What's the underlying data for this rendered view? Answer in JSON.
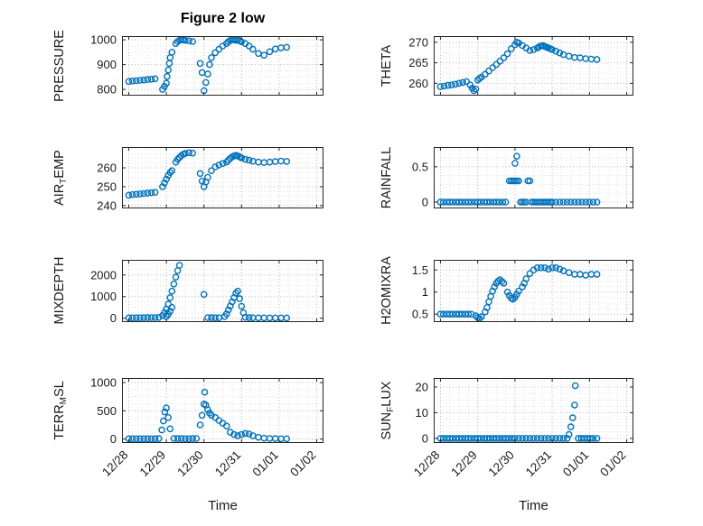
{
  "title": "Figure 2 low",
  "axis": {
    "xlabel": "Time",
    "xlim": [
      -0.18,
      5.18
    ],
    "xticks": [
      0,
      1,
      2,
      3,
      4,
      5
    ],
    "xtick_labels": [
      "12/28",
      "12/29",
      "12/30",
      "12/31",
      "01/01",
      "01/02"
    ]
  },
  "style": {
    "marker_color": "#0072BD",
    "axis_color": "#262626",
    "grid_major": "#b9b9b9",
    "grid_minor": "#dddddd"
  },
  "chart_data": [
    {
      "type": "scatter",
      "name": "pressure",
      "ylabel": {
        "pre": "PRESSURE",
        "sub": "",
        "post": ""
      },
      "ylabel_text": "PRESSURE",
      "ylim": [
        775,
        1015
      ],
      "yticks": [
        800,
        900,
        1000
      ],
      "ytick_labels": [
        "800",
        "900",
        "1000"
      ],
      "x": [
        0.0,
        0.1,
        0.2,
        0.3,
        0.4,
        0.5,
        0.6,
        0.7,
        0.9,
        0.95,
        1.0,
        1.02,
        1.05,
        1.08,
        1.1,
        1.15,
        1.25,
        1.3,
        1.35,
        1.4,
        1.45,
        1.5,
        1.6,
        1.7,
        1.9,
        1.95,
        2.0,
        2.05,
        2.1,
        2.15,
        2.2,
        2.3,
        2.4,
        2.5,
        2.6,
        2.65,
        2.7,
        2.75,
        2.8,
        2.85,
        2.9,
        2.95,
        3.0,
        3.1,
        3.2,
        3.3,
        3.45,
        3.6,
        3.75,
        3.9,
        4.05,
        4.2
      ],
      "y": [
        832,
        834,
        835,
        837,
        838,
        840,
        841,
        843,
        800,
        812,
        825,
        852,
        878,
        905,
        928,
        950,
        985,
        993,
        998,
        1000,
        1000,
        998,
        996,
        993,
        905,
        868,
        795,
        828,
        862,
        900,
        928,
        948,
        962,
        975,
        985,
        992,
        997,
        1000,
        1000,
        998,
        1000,
        996,
        992,
        985,
        975,
        962,
        945,
        938,
        952,
        963,
        968,
        970
      ]
    },
    {
      "type": "scatter",
      "name": "air-temp",
      "ylabel": {
        "pre": "AIR",
        "sub": "T",
        "post": "EMP"
      },
      "ylabel_text": "AIR_TEMP",
      "ylim": [
        238.5,
        271
      ],
      "yticks": [
        240,
        250,
        260
      ],
      "ytick_labels": [
        "240",
        "250",
        "260"
      ],
      "x": [
        0.0,
        0.1,
        0.2,
        0.3,
        0.4,
        0.5,
        0.6,
        0.7,
        0.9,
        0.95,
        1.0,
        1.05,
        1.1,
        1.15,
        1.25,
        1.3,
        1.35,
        1.4,
        1.45,
        1.5,
        1.6,
        1.7,
        1.9,
        1.95,
        2.0,
        2.05,
        2.1,
        2.2,
        2.3,
        2.4,
        2.5,
        2.6,
        2.65,
        2.7,
        2.75,
        2.8,
        2.85,
        2.9,
        2.95,
        3.0,
        3.1,
        3.2,
        3.3,
        3.45,
        3.6,
        3.75,
        3.9,
        4.05,
        4.2
      ],
      "y": [
        245.5,
        245.8,
        246.0,
        246.2,
        246.4,
        246.6,
        246.8,
        247.0,
        250,
        252,
        254,
        256,
        257.5,
        258.5,
        263,
        264.5,
        265.5,
        266.5,
        267.2,
        267.6,
        268,
        267.8,
        257,
        253,
        250,
        252.5,
        255,
        258.5,
        260.5,
        261.5,
        262.3,
        263,
        264,
        265,
        265.8,
        266.3,
        266.6,
        266.3,
        265.8,
        265.2,
        264.5,
        264,
        263.5,
        263,
        262.8,
        263,
        263.3,
        263.6,
        263.4
      ]
    },
    {
      "type": "scatter",
      "name": "mixdepth",
      "ylabel": {
        "pre": "MIXDEPTH",
        "sub": "",
        "post": ""
      },
      "ylabel_text": "MIXDEPTH",
      "ylim": [
        -180,
        2700
      ],
      "yticks": [
        0,
        1000,
        2000
      ],
      "ytick_labels": [
        "0",
        "1000",
        "2000"
      ],
      "x": [
        0.0,
        0.1,
        0.2,
        0.3,
        0.4,
        0.5,
        0.6,
        0.7,
        0.8,
        0.9,
        0.95,
        1.0,
        1.0,
        1.05,
        1.05,
        1.1,
        1.1,
        1.15,
        1.15,
        1.2,
        1.25,
        1.3,
        1.35,
        2.0,
        2.1,
        2.2,
        2.3,
        2.4,
        2.55,
        2.6,
        2.65,
        2.7,
        2.75,
        2.8,
        2.85,
        2.9,
        2.95,
        3.0,
        3.05,
        3.1,
        3.2,
        3.3,
        3.45,
        3.6,
        3.75,
        3.9,
        4.05,
        4.2
      ],
      "y": [
        15,
        15,
        20,
        20,
        25,
        25,
        30,
        30,
        35,
        120,
        260,
        80,
        420,
        650,
        180,
        950,
        320,
        1250,
        500,
        1580,
        1900,
        2200,
        2450,
        1100,
        30,
        25,
        20,
        20,
        80,
        200,
        380,
        560,
        760,
        950,
        1150,
        1250,
        900,
        550,
        250,
        40,
        25,
        20,
        15,
        15,
        10,
        10,
        10,
        10
      ]
    },
    {
      "type": "scatter",
      "name": "terr-msl",
      "ylabel": {
        "pre": "TERR",
        "sub": "M",
        "post": "SL"
      },
      "ylabel_text": "TERR_MSL",
      "ylim": [
        -70,
        1080
      ],
      "yticks": [
        0,
        500,
        1000
      ],
      "ytick_labels": [
        "0",
        "500",
        "1000"
      ],
      "x": [
        0.0,
        0.1,
        0.2,
        0.3,
        0.4,
        0.5,
        0.6,
        0.7,
        0.8,
        0.88,
        0.92,
        0.96,
        1.0,
        1.05,
        1.1,
        1.2,
        1.3,
        1.4,
        1.5,
        1.6,
        1.7,
        1.8,
        1.9,
        1.95,
        2.0,
        2.02,
        2.05,
        2.1,
        2.15,
        2.2,
        2.3,
        2.4,
        2.5,
        2.6,
        2.7,
        2.8,
        2.9,
        3.0,
        3.1,
        3.2,
        3.3,
        3.45,
        3.6,
        3.75,
        3.9,
        4.05,
        4.2
      ],
      "y": [
        5,
        5,
        5,
        5,
        5,
        5,
        5,
        5,
        8,
        160,
        320,
        480,
        550,
        380,
        180,
        10,
        8,
        8,
        5,
        5,
        8,
        10,
        250,
        420,
        620,
        830,
        600,
        520,
        460,
        420,
        380,
        330,
        280,
        230,
        120,
        80,
        60,
        80,
        100,
        90,
        60,
        30,
        15,
        10,
        8,
        5,
        5
      ]
    },
    {
      "type": "scatter",
      "name": "theta",
      "ylabel": {
        "pre": "THETA",
        "sub": "",
        "post": ""
      },
      "ylabel_text": "THETA",
      "ylim": [
        257,
        271.5
      ],
      "yticks": [
        260,
        265,
        270
      ],
      "ytick_labels": [
        "260",
        "265",
        "270"
      ],
      "x": [
        0.0,
        0.1,
        0.2,
        0.3,
        0.4,
        0.5,
        0.6,
        0.7,
        0.8,
        0.85,
        0.9,
        0.95,
        1.0,
        1.05,
        1.1,
        1.2,
        1.3,
        1.4,
        1.5,
        1.6,
        1.7,
        1.8,
        1.9,
        2.0,
        2.05,
        2.1,
        2.2,
        2.3,
        2.4,
        2.5,
        2.6,
        2.65,
        2.7,
        2.75,
        2.8,
        2.85,
        2.9,
        2.95,
        3.0,
        3.1,
        3.2,
        3.3,
        3.45,
        3.6,
        3.75,
        3.9,
        4.05,
        4.2
      ],
      "y": [
        259.2,
        259.3,
        259.5,
        259.6,
        259.8,
        260.0,
        260.2,
        260.4,
        259.6,
        258.8,
        258.2,
        258.6,
        260.8,
        261.2,
        261.5,
        262.2,
        263.0,
        263.8,
        264.6,
        265.4,
        266.2,
        267.2,
        268.4,
        269.4,
        270.0,
        269.8,
        269.2,
        268.6,
        268.0,
        268.2,
        268.6,
        268.9,
        269.1,
        269.2,
        269.0,
        268.8,
        268.6,
        268.4,
        268.2,
        267.8,
        267.4,
        267.0,
        266.6,
        266.3,
        266.2,
        266.0,
        265.9,
        265.8
      ]
    },
    {
      "type": "scatter",
      "name": "rainfall",
      "ylabel": {
        "pre": "RAINFALL",
        "sub": "",
        "post": ""
      },
      "ylabel_text": "RAINFALL",
      "ylim": [
        -0.09,
        0.78
      ],
      "yticks": [
        0,
        0.5
      ],
      "ytick_labels": [
        "0",
        "0.5"
      ],
      "x": [
        0,
        0.08,
        0.17,
        0.25,
        0.33,
        0.42,
        0.5,
        0.58,
        0.67,
        0.75,
        0.83,
        0.92,
        1.0,
        1.08,
        1.17,
        1.25,
        1.33,
        1.42,
        1.5,
        1.58,
        1.67,
        1.75,
        1.85,
        1.9,
        1.95,
        2.0,
        2.05,
        2.1,
        2.0,
        2.05,
        2.35,
        2.4,
        2.15,
        2.2,
        2.25,
        2.3,
        2.45,
        2.5,
        2.55,
        2.6,
        2.65,
        2.7,
        2.75,
        2.8,
        2.85,
        2.9,
        2.95,
        3.0,
        3.1,
        3.2,
        3.3,
        3.4,
        3.5,
        3.6,
        3.7,
        3.8,
        3.9,
        4.0,
        4.1,
        4.2
      ],
      "y": [
        0,
        0,
        0,
        0,
        0,
        0,
        0,
        0,
        0,
        0,
        0,
        0,
        0,
        0,
        0,
        0,
        0,
        0,
        0,
        0,
        0,
        0,
        0.3,
        0.3,
        0.3,
        0.3,
        0.3,
        0.3,
        0.55,
        0.65,
        0.3,
        0.3,
        0,
        0,
        0,
        0,
        0,
        0,
        0,
        0,
        0,
        0,
        0,
        0,
        0,
        0,
        0,
        0,
        0,
        0,
        0,
        0,
        0,
        0,
        0,
        0,
        0,
        0,
        0,
        0
      ]
    },
    {
      "type": "scatter",
      "name": "h2omixra",
      "ylabel": {
        "pre": "H2OMIXRA",
        "sub": "",
        "post": ""
      },
      "ylabel_text": "H2OMIXRA",
      "ylim": [
        0.32,
        1.73
      ],
      "yticks": [
        0.5,
        1,
        1.5
      ],
      "ytick_labels": [
        "0.5",
        "1",
        "1.5"
      ],
      "x": [
        0.0,
        0.08,
        0.17,
        0.25,
        0.33,
        0.42,
        0.5,
        0.58,
        0.67,
        0.75,
        0.83,
        0.95,
        1.0,
        1.05,
        1.1,
        1.2,
        1.25,
        1.3,
        1.35,
        1.4,
        1.45,
        1.5,
        1.55,
        1.6,
        1.65,
        1.7,
        1.8,
        1.85,
        1.9,
        1.95,
        2.0,
        2.05,
        2.1,
        2.2,
        2.25,
        2.3,
        2.4,
        2.5,
        2.6,
        2.7,
        2.8,
        2.9,
        3.0,
        3.1,
        3.2,
        3.3,
        3.45,
        3.6,
        3.75,
        3.9,
        4.05,
        4.2
      ],
      "y": [
        0.5,
        0.5,
        0.5,
        0.5,
        0.5,
        0.5,
        0.5,
        0.5,
        0.5,
        0.5,
        0.5,
        0.46,
        0.42,
        0.4,
        0.44,
        0.55,
        0.65,
        0.78,
        0.9,
        1.02,
        1.12,
        1.2,
        1.25,
        1.28,
        1.24,
        1.2,
        1.0,
        0.92,
        0.86,
        0.84,
        0.88,
        0.95,
        1.02,
        1.12,
        1.2,
        1.3,
        1.42,
        1.5,
        1.55,
        1.55,
        1.55,
        1.52,
        1.55,
        1.55,
        1.52,
        1.48,
        1.44,
        1.4,
        1.4,
        1.38,
        1.4,
        1.4
      ]
    },
    {
      "type": "scatter",
      "name": "sun-flux",
      "ylabel": {
        "pre": "SUN",
        "sub": "F",
        "post": "LUX"
      },
      "ylabel_text": "SUN_FLUX",
      "ylim": [
        -1.8,
        23.5
      ],
      "yticks": [
        0,
        10,
        20
      ],
      "ytick_labels": [
        "0",
        "10",
        "20"
      ],
      "x": [
        0,
        0.08,
        0.17,
        0.25,
        0.33,
        0.42,
        0.5,
        0.58,
        0.67,
        0.75,
        0.83,
        0.92,
        1.0,
        1.08,
        1.17,
        1.25,
        1.33,
        1.42,
        1.5,
        1.58,
        1.67,
        1.75,
        1.83,
        1.92,
        2.0,
        2.1,
        2.2,
        2.3,
        2.4,
        2.5,
        2.6,
        2.7,
        2.8,
        2.9,
        3.0,
        3.1,
        3.2,
        3.3,
        3.4,
        3.45,
        3.5,
        3.55,
        3.6,
        3.62,
        3.7,
        3.78,
        3.86,
        3.94,
        4.02,
        4.1,
        4.2
      ],
      "y": [
        0,
        0,
        0,
        0,
        0,
        0,
        0,
        0,
        0,
        0,
        0,
        0,
        0,
        0,
        0,
        0,
        0,
        0,
        0,
        0,
        0,
        0,
        0,
        0,
        0,
        0,
        0,
        0,
        0,
        0,
        0,
        0,
        0,
        0,
        0,
        0,
        0,
        0,
        0,
        1.5,
        4.5,
        8,
        13,
        20.5,
        0,
        0,
        0,
        0,
        0,
        0,
        0
      ]
    }
  ]
}
